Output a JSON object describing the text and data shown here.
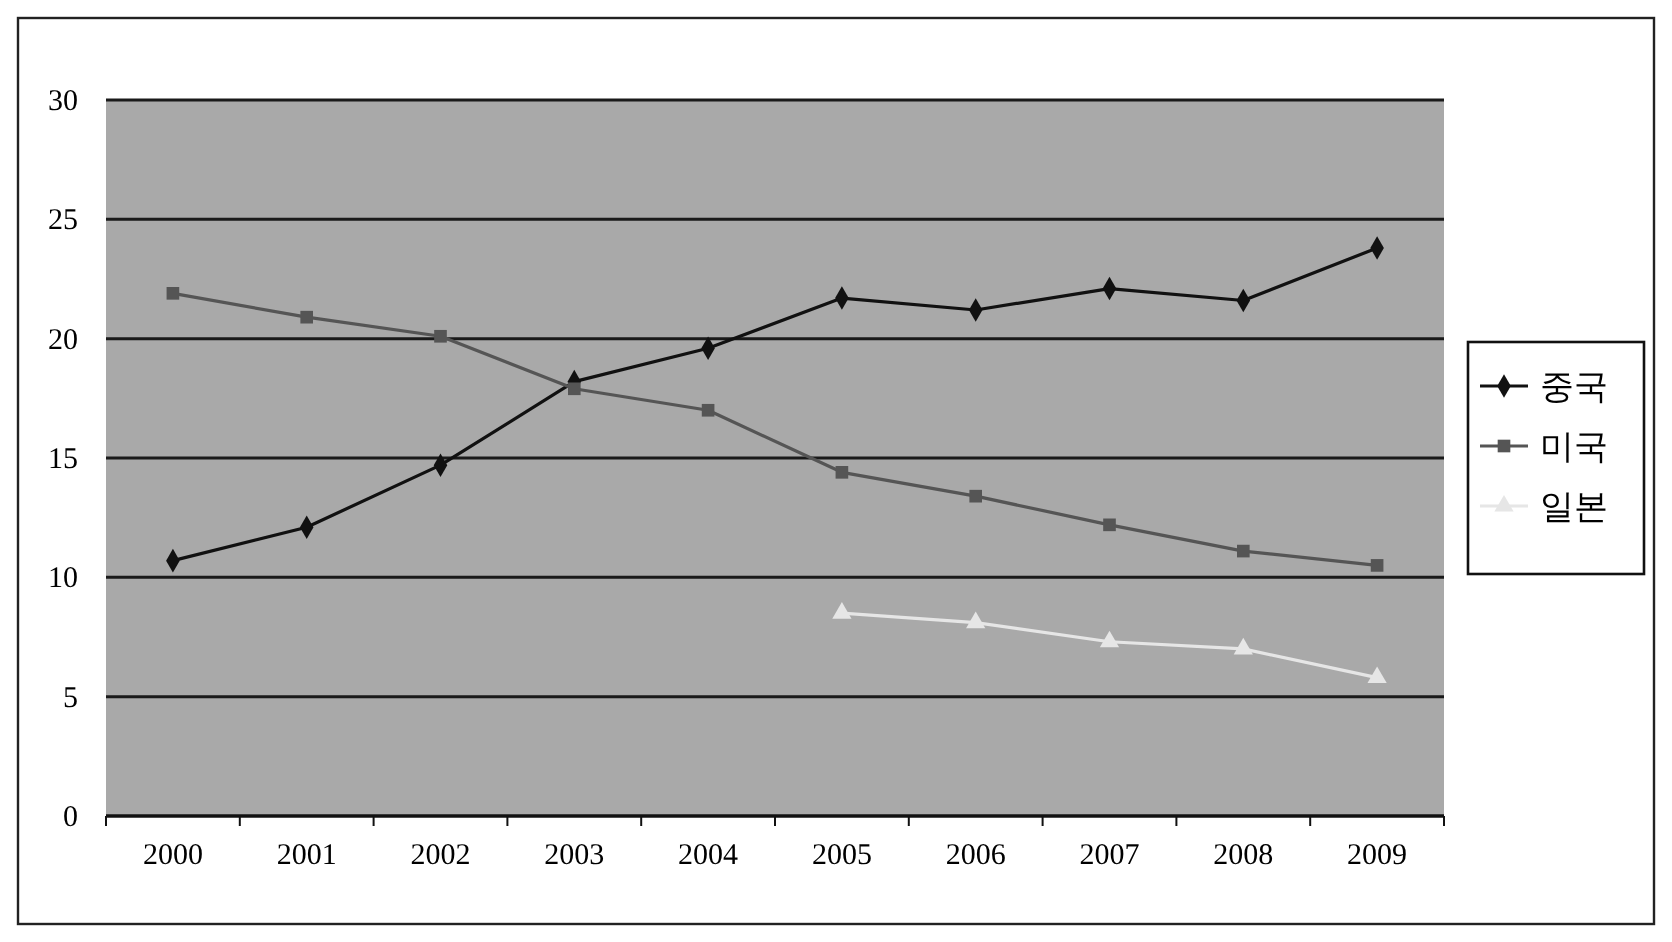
{
  "chart_data": {
    "type": "line",
    "categories": [
      "2000",
      "2001",
      "2002",
      "2003",
      "2004",
      "2005",
      "2006",
      "2007",
      "2008",
      "2009"
    ],
    "series": [
      {
        "name": "중국",
        "color": "#111111",
        "marker": "diamond",
        "values": [
          10.7,
          12.1,
          14.7,
          18.2,
          19.6,
          21.7,
          21.2,
          22.1,
          21.6,
          23.8
        ]
      },
      {
        "name": "미국",
        "color": "#555555",
        "marker": "square",
        "values": [
          21.9,
          20.9,
          20.1,
          17.9,
          17.0,
          14.4,
          13.4,
          12.2,
          11.1,
          10.5
        ]
      },
      {
        "name": "일본",
        "color": "#e6e6e6",
        "marker": "triangle",
        "values": [
          null,
          null,
          null,
          null,
          null,
          8.5,
          8.1,
          7.3,
          7.0,
          5.8
        ]
      }
    ],
    "ylim": [
      0,
      30
    ],
    "yticks": [
      0,
      5,
      10,
      15,
      20,
      25,
      30
    ],
    "grid": "y",
    "legend": "right"
  }
}
